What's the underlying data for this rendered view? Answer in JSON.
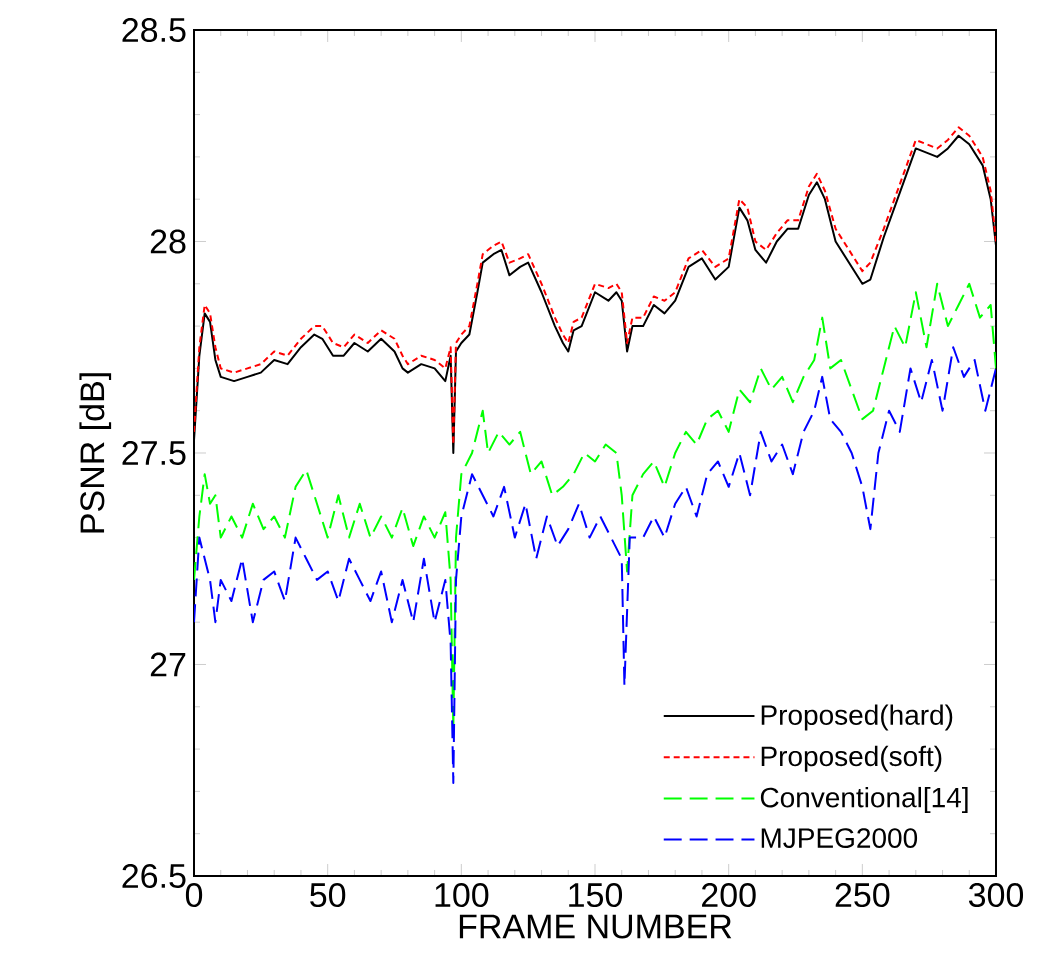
{
  "chart_data": {
    "type": "line",
    "xlabel": "FRAME NUMBER",
    "ylabel": "PSNR [dB]",
    "xlim": [
      0,
      300
    ],
    "xticks": [
      0,
      50,
      100,
      150,
      200,
      250,
      300
    ],
    "ylim": [
      26.5,
      28.5
    ],
    "yticks": [
      26.5,
      27,
      27.5,
      28,
      28.5
    ],
    "grid": false,
    "legend": "bottom right",
    "series": [
      {
        "name": "Proposed(hard)",
        "color": "#000000",
        "line_style": "solid",
        "x": [
          0,
          2,
          4,
          6,
          8,
          10,
          15,
          20,
          25,
          30,
          35,
          40,
          45,
          48,
          52,
          56,
          60,
          65,
          70,
          75,
          78,
          80,
          85,
          90,
          94,
          96,
          97,
          98,
          100,
          103,
          106,
          108,
          112,
          115,
          118,
          122,
          125,
          130,
          135,
          138,
          140,
          142,
          145,
          150,
          155,
          158,
          160,
          162,
          164,
          168,
          172,
          176,
          180,
          185,
          190,
          195,
          200,
          204,
          207,
          210,
          214,
          218,
          222,
          226,
          230,
          233,
          236,
          240,
          245,
          250,
          253,
          258,
          262,
          266,
          270,
          274,
          278,
          282,
          286,
          290,
          295,
          298,
          300
        ],
        "values": [
          27.53,
          27.73,
          27.83,
          27.81,
          27.72,
          27.68,
          27.67,
          27.68,
          27.69,
          27.72,
          27.71,
          27.75,
          27.78,
          27.77,
          27.73,
          27.73,
          27.76,
          27.74,
          27.77,
          27.74,
          27.7,
          27.69,
          27.71,
          27.7,
          27.67,
          27.73,
          27.5,
          27.74,
          27.76,
          27.78,
          27.88,
          27.95,
          27.97,
          27.98,
          27.92,
          27.94,
          27.95,
          27.88,
          27.8,
          27.76,
          27.74,
          27.79,
          27.8,
          27.88,
          27.86,
          27.88,
          27.86,
          27.74,
          27.8,
          27.8,
          27.85,
          27.83,
          27.86,
          27.94,
          27.96,
          27.91,
          27.94,
          28.08,
          28.05,
          27.98,
          27.95,
          28.0,
          28.03,
          28.03,
          28.11,
          28.14,
          28.1,
          28.0,
          27.95,
          27.9,
          27.91,
          28.01,
          28.08,
          28.15,
          28.22,
          28.21,
          28.2,
          28.22,
          28.25,
          28.23,
          28.18,
          28.1,
          27.99
        ]
      },
      {
        "name": "Proposed(soft)",
        "color": "#ff0000",
        "line_style": "dotted",
        "x": [
          0,
          2,
          4,
          6,
          8,
          10,
          15,
          20,
          25,
          30,
          35,
          40,
          45,
          48,
          52,
          56,
          60,
          65,
          70,
          75,
          78,
          80,
          85,
          90,
          94,
          96,
          97,
          98,
          100,
          103,
          106,
          108,
          112,
          115,
          118,
          122,
          125,
          130,
          135,
          138,
          140,
          142,
          145,
          150,
          155,
          158,
          160,
          162,
          164,
          168,
          172,
          176,
          180,
          185,
          190,
          195,
          200,
          204,
          207,
          210,
          214,
          218,
          222,
          226,
          230,
          233,
          236,
          240,
          245,
          250,
          253,
          258,
          262,
          266,
          270,
          274,
          278,
          282,
          286,
          290,
          295,
          298,
          300
        ],
        "values": [
          27.55,
          27.75,
          27.85,
          27.83,
          27.75,
          27.7,
          27.69,
          27.7,
          27.71,
          27.74,
          27.73,
          27.77,
          27.8,
          27.8,
          27.76,
          27.75,
          27.78,
          27.76,
          27.79,
          27.77,
          27.73,
          27.71,
          27.73,
          27.72,
          27.7,
          27.75,
          27.52,
          27.76,
          27.78,
          27.8,
          27.9,
          27.97,
          27.99,
          28.0,
          27.95,
          27.96,
          27.97,
          27.9,
          27.82,
          27.78,
          27.76,
          27.81,
          27.82,
          27.9,
          27.89,
          27.9,
          27.88,
          27.76,
          27.82,
          27.82,
          27.87,
          27.86,
          27.88,
          27.96,
          27.98,
          27.94,
          27.96,
          28.1,
          28.08,
          28.0,
          27.98,
          28.02,
          28.05,
          28.05,
          28.13,
          28.16,
          28.12,
          28.03,
          27.98,
          27.93,
          27.95,
          28.03,
          28.1,
          28.17,
          28.24,
          28.23,
          28.22,
          28.24,
          28.27,
          28.25,
          28.2,
          28.12,
          28.0
        ]
      },
      {
        "name": "Conventional[14]",
        "color": "#00ff00",
        "line_style": "dashed",
        "x": [
          0,
          2,
          4,
          6,
          8,
          10,
          14,
          18,
          22,
          26,
          30,
          34,
          38,
          42,
          46,
          50,
          54,
          58,
          62,
          66,
          70,
          74,
          78,
          82,
          86,
          90,
          94,
          96,
          97,
          98,
          100,
          104,
          106,
          108,
          110,
          114,
          118,
          122,
          126,
          130,
          134,
          138,
          142,
          146,
          150,
          154,
          158,
          160,
          162,
          164,
          168,
          172,
          176,
          180,
          184,
          188,
          192,
          196,
          200,
          204,
          208,
          212,
          216,
          220,
          224,
          228,
          232,
          235,
          238,
          242,
          246,
          250,
          254,
          258,
          262,
          266,
          270,
          274,
          278,
          282,
          286,
          290,
          294,
          298,
          300
        ],
        "values": [
          27.2,
          27.35,
          27.45,
          27.38,
          27.4,
          27.3,
          27.35,
          27.3,
          27.38,
          27.32,
          27.35,
          27.3,
          27.42,
          27.46,
          27.38,
          27.3,
          27.4,
          27.3,
          27.38,
          27.3,
          27.35,
          27.3,
          27.37,
          27.28,
          27.35,
          27.3,
          27.36,
          27.2,
          26.85,
          27.3,
          27.45,
          27.5,
          27.55,
          27.6,
          27.5,
          27.55,
          27.52,
          27.55,
          27.45,
          27.48,
          27.4,
          27.42,
          27.45,
          27.5,
          27.48,
          27.52,
          27.5,
          27.4,
          27.22,
          27.4,
          27.45,
          27.48,
          27.42,
          27.5,
          27.55,
          27.52,
          27.58,
          27.6,
          27.55,
          27.65,
          27.62,
          27.7,
          27.65,
          27.68,
          27.62,
          27.68,
          27.72,
          27.82,
          27.7,
          27.72,
          27.65,
          27.58,
          27.6,
          27.7,
          27.8,
          27.75,
          27.88,
          27.75,
          27.9,
          27.8,
          27.85,
          27.9,
          27.82,
          27.85,
          27.7
        ]
      },
      {
        "name": "MJPEG2000",
        "color": "#0000ff",
        "line_style": "dashed",
        "x": [
          0,
          2,
          4,
          6,
          8,
          10,
          14,
          18,
          22,
          26,
          30,
          34,
          38,
          42,
          46,
          50,
          54,
          58,
          62,
          66,
          70,
          74,
          78,
          82,
          86,
          90,
          94,
          96,
          97,
          98,
          100,
          104,
          108,
          112,
          116,
          120,
          124,
          128,
          132,
          136,
          140,
          144,
          148,
          152,
          156,
          160,
          161,
          163,
          168,
          172,
          176,
          180,
          184,
          188,
          192,
          196,
          200,
          204,
          208,
          212,
          216,
          220,
          224,
          228,
          232,
          235,
          238,
          242,
          246,
          250,
          253,
          256,
          260,
          264,
          268,
          272,
          276,
          280,
          284,
          288,
          292,
          296,
          300
        ],
        "values": [
          27.1,
          27.3,
          27.25,
          27.2,
          27.1,
          27.2,
          27.15,
          27.25,
          27.1,
          27.2,
          27.22,
          27.15,
          27.3,
          27.25,
          27.2,
          27.22,
          27.15,
          27.25,
          27.2,
          27.15,
          27.22,
          27.1,
          27.2,
          27.1,
          27.25,
          27.1,
          27.2,
          27.05,
          26.72,
          27.2,
          27.35,
          27.45,
          27.4,
          27.35,
          27.42,
          27.3,
          27.38,
          27.25,
          27.35,
          27.28,
          27.32,
          27.38,
          27.3,
          27.35,
          27.3,
          27.25,
          26.95,
          27.3,
          27.3,
          27.35,
          27.3,
          27.38,
          27.42,
          27.35,
          27.45,
          27.48,
          27.42,
          27.5,
          27.4,
          27.55,
          27.48,
          27.52,
          27.45,
          27.55,
          27.6,
          27.68,
          27.58,
          27.55,
          27.5,
          27.42,
          27.32,
          27.5,
          27.6,
          27.55,
          27.7,
          27.62,
          27.72,
          27.6,
          27.75,
          27.68,
          27.72,
          27.6,
          27.7
        ]
      }
    ]
  }
}
